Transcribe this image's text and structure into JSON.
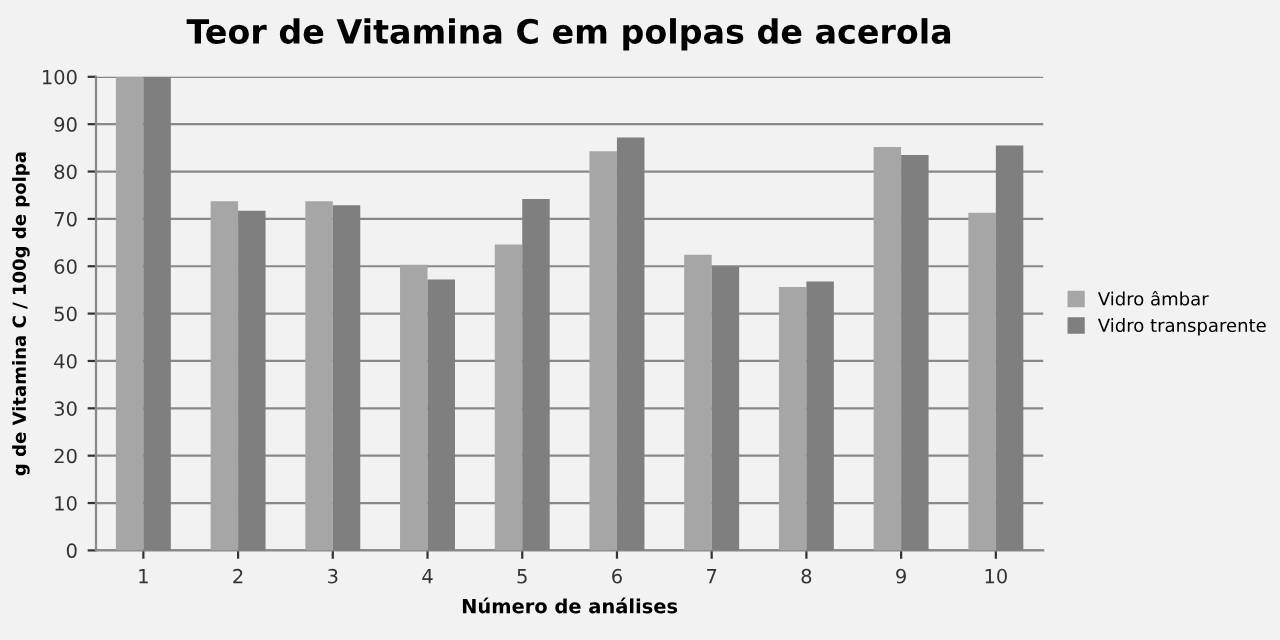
{
  "chart_data": {
    "type": "bar",
    "title": "Teor de Vitamina C em polpas de acerola",
    "xlabel": "Número de análises",
    "ylabel": "g de Vitamina C / 100g de polpa",
    "categories": [
      "1",
      "2",
      "3",
      "4",
      "5",
      "6",
      "7",
      "8",
      "9",
      "10"
    ],
    "series": [
      {
        "name": "Vidro âmbar",
        "color": "#a6a6a6",
        "values": [
          100,
          73.7,
          73.7,
          60.3,
          64.6,
          84.3,
          62.4,
          55.6,
          85.2,
          71.3
        ]
      },
      {
        "name": "Vidro transparente",
        "color": "#7f7f7f",
        "values": [
          100,
          71.7,
          72.9,
          57.2,
          74.2,
          87.2,
          59.9,
          56.8,
          83.5,
          85.5
        ]
      }
    ],
    "ylim": [
      0,
      100
    ],
    "yticks": [
      0,
      10,
      20,
      30,
      40,
      50,
      60,
      70,
      80,
      90,
      100
    ],
    "grid": "y",
    "legend": "right"
  }
}
